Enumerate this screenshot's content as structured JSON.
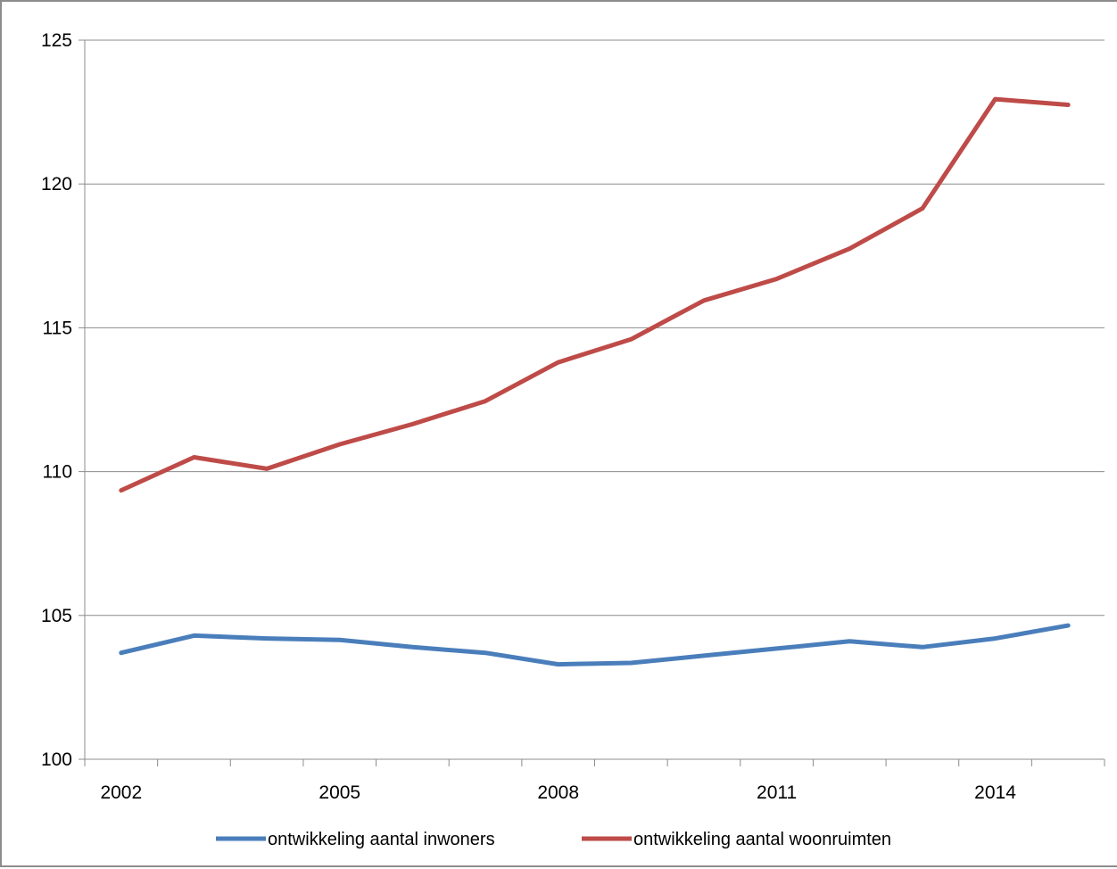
{
  "chart_data": {
    "type": "line",
    "title": "",
    "xlabel": "",
    "ylabel": "",
    "x": [
      2002,
      2003,
      2004,
      2005,
      2006,
      2007,
      2008,
      2009,
      2010,
      2011,
      2012,
      2013,
      2014,
      2015
    ],
    "x_tick_labels": [
      "2002",
      "2005",
      "2008",
      "2011",
      "2014"
    ],
    "x_tick_label_values": [
      2002,
      2005,
      2008,
      2011,
      2014
    ],
    "ylim": [
      100,
      125
    ],
    "y_ticks": [
      100,
      105,
      110,
      115,
      120,
      125
    ],
    "grid": true,
    "legend_position": "bottom",
    "series": [
      {
        "name": "ontwikkeling aantal inwoners",
        "color": "#4a7ebb",
        "values": [
          103.7,
          104.3,
          104.2,
          104.15,
          103.9,
          103.7,
          103.3,
          103.35,
          103.6,
          103.85,
          104.1,
          103.9,
          104.2,
          104.65
        ]
      },
      {
        "name": "ontwikkeling aantal woonruimten",
        "color": "#be4b48",
        "values": [
          109.35,
          110.5,
          110.1,
          110.95,
          111.65,
          112.45,
          113.8,
          114.6,
          115.95,
          116.7,
          117.75,
          119.15,
          122.95,
          122.75
        ]
      }
    ]
  }
}
